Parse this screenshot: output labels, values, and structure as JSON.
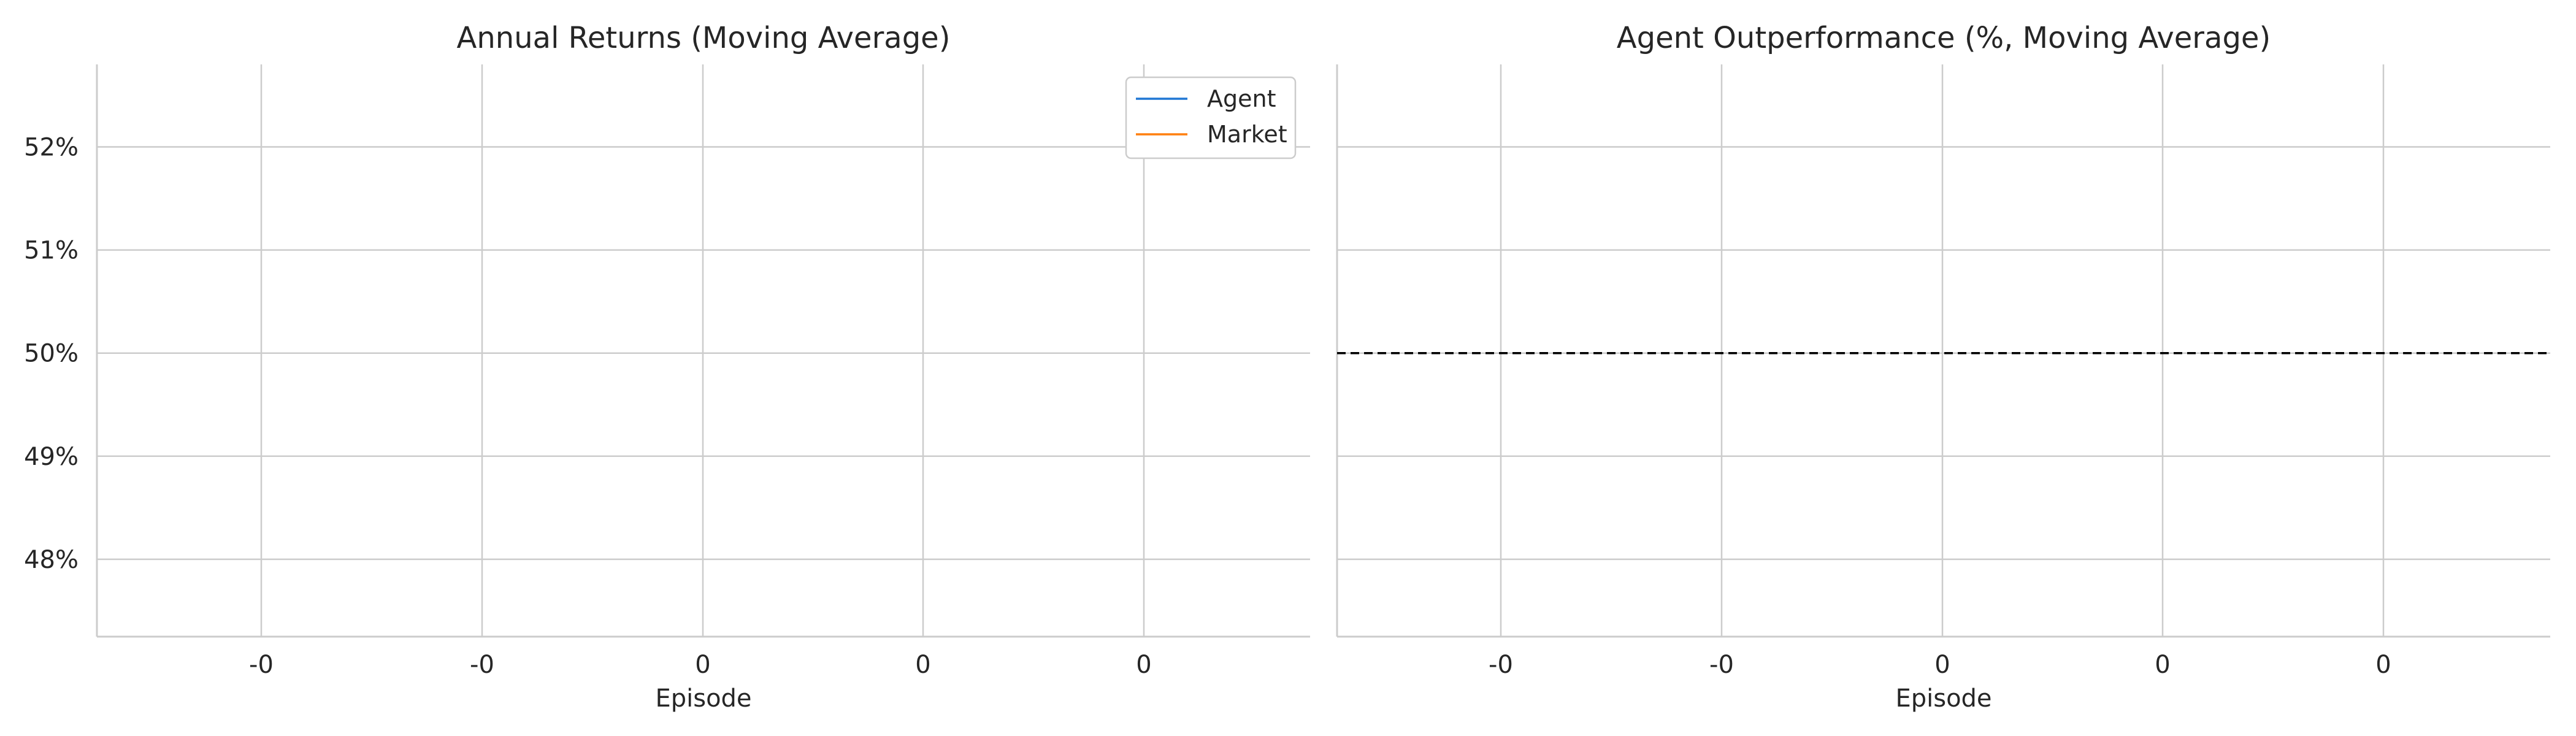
{
  "chart_data": [
    {
      "type": "line",
      "title": "Annual Returns (Moving Average)",
      "xlabel": "Episode",
      "ylabel": "",
      "x_ticks": [
        "-0",
        "-0",
        "0",
        "0",
        "0"
      ],
      "y_ticks": [
        "48%",
        "49%",
        "50%",
        "51%",
        "52%"
      ],
      "y_tick_values": [
        48,
        49,
        50,
        51,
        52
      ],
      "ylim": [
        47.25,
        52.8
      ],
      "grid": true,
      "legend_placement": "top-right",
      "series": [
        {
          "name": "Agent",
          "color": "#1f77d4",
          "values": []
        },
        {
          "name": "Market",
          "color": "#ff7f0e",
          "values": []
        }
      ]
    },
    {
      "type": "line",
      "title": "Agent Outperformance (%, Moving Average)",
      "xlabel": "Episode",
      "ylabel": "",
      "x_ticks": [
        "-0",
        "-0",
        "0",
        "0",
        "0"
      ],
      "y_tick_values": [
        48,
        49,
        50,
        51,
        52
      ],
      "ylim": [
        47.25,
        52.8
      ],
      "grid": true,
      "reference_line": {
        "y": 50,
        "style": "dashed",
        "color": "#000000"
      },
      "series": []
    }
  ]
}
